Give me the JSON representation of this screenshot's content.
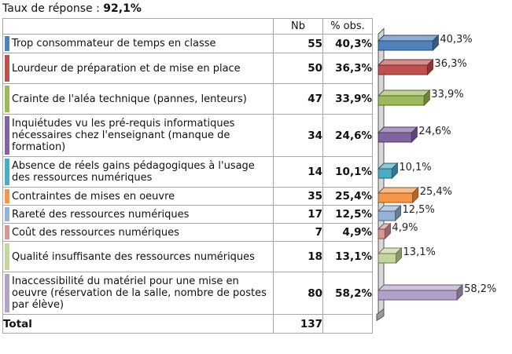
{
  "response_rate": {
    "label": "Taux de réponse :",
    "value": "92,1%"
  },
  "table": {
    "col_nb": "Nb",
    "col_pct": "% obs.",
    "total_label": "Total",
    "total_value": "137"
  },
  "chart_data": {
    "type": "bar",
    "orientation": "horizontal",
    "categories": [
      "Trop consommateur de temps en classe",
      "Lourdeur de préparation et de mise en place",
      "Crainte de l'aléa technique (pannes, lenteurs)",
      "Inquiétudes vu les pré-requis informatiques nécessaires chez l'enseignant (manque de formation)",
      "Absence de réels gains pédagogiques à l'usage des  ressources numériques",
      "Contraintes de mises en oeuvre",
      "Rareté des ressources numériques",
      "Coût des ressources numériques",
      "Qualité insuffisante des ressources numériques",
      "Inaccessibilité du matériel pour une mise en oeuvre (réservation de la salle, nombre de postes par élève)"
    ],
    "nb": [
      55,
      50,
      47,
      34,
      14,
      35,
      17,
      7,
      18,
      80
    ],
    "values": [
      40.3,
      36.3,
      33.9,
      24.6,
      10.1,
      25.4,
      12.5,
      4.9,
      13.1,
      58.2
    ],
    "value_labels": [
      "40,3%",
      "36,3%",
      "33,9%",
      "24,6%",
      "10,1%",
      "25,4%",
      "12,5%",
      "4,9%",
      "13,1%",
      "58,2%"
    ],
    "colors": [
      "#4f81bd",
      "#c0504d",
      "#9bbb59",
      "#8064a2",
      "#4bacc6",
      "#f79646",
      "#95b3d7",
      "#d99694",
      "#c3d69b",
      "#b3a2c7"
    ],
    "three_d": true
  }
}
